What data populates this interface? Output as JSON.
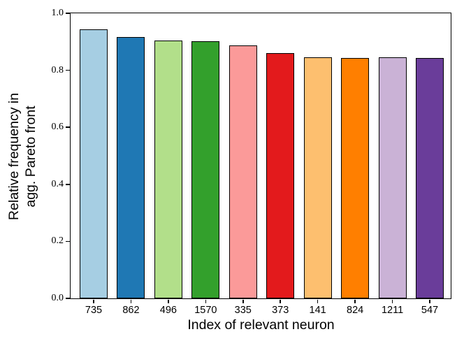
{
  "chart_data": {
    "type": "bar",
    "title": "",
    "xlabel": "Index of relevant neuron",
    "ylabel": "Relative frequency in agg. Pareto front",
    "ylabel_lines": [
      "Relative frequency in",
      "agg. Pareto front"
    ],
    "categories": [
      "735",
      "862",
      "496",
      "1570",
      "335",
      "373",
      "141",
      "824",
      "1211",
      "547"
    ],
    "values": [
      0.943,
      0.916,
      0.904,
      0.902,
      0.888,
      0.861,
      0.846,
      0.844,
      0.846,
      0.844
    ],
    "bar_colors": [
      "#a6cee3",
      "#1f78b4",
      "#b2df8a",
      "#33a02c",
      "#fb9a99",
      "#e31a1c",
      "#fdbf6f",
      "#ff7f00",
      "#cab2d6",
      "#6a3d9a"
    ],
    "bar_edge_color": "#000000",
    "ylim": [
      0.0,
      1.0
    ],
    "yticks": [
      "0.0",
      "0.2",
      "0.4",
      "0.6",
      "0.8",
      "1.0"
    ],
    "grid": false,
    "legend": "none",
    "palette_name": "Paired"
  }
}
